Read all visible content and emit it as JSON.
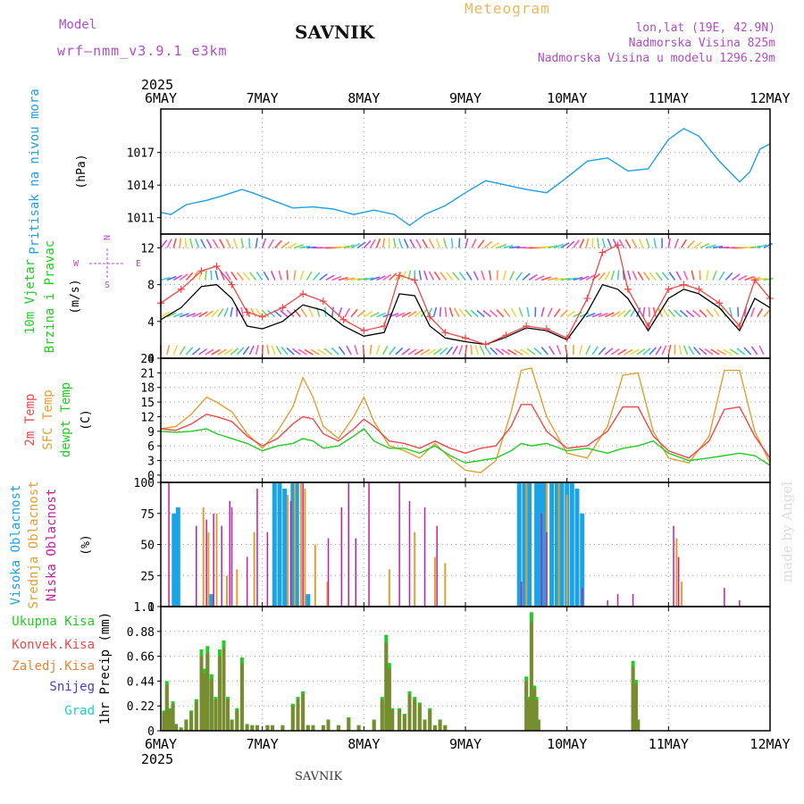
{
  "header": {
    "model_label": "Model",
    "model_name": "wrf—nmm_v3.9.1  e3km",
    "station": "SAVNIK",
    "product": "Meteogram",
    "lonlat": "lon,lat (19E, 42.9N)",
    "altitude": "Nadmorska Visina 825m",
    "model_altitude": "Nadmorska Visina u modelu 1296.29m"
  },
  "footer": {
    "station": "SAVNIK",
    "credit": "made by Angel"
  },
  "colors": {
    "pressure": "#1ea0e6",
    "wind_label": "#22cc22",
    "temp2m": "#f04848",
    "sfc": "#e0a030",
    "dewpt": "#22cc22",
    "cloud_high": "#1aa4e6",
    "cloud_mid": "#e0a030",
    "cloud_low": "#c020a0",
    "precip_total": "#22cc22",
    "precip_conv": "#f04848",
    "precip_frozen": "#f08030",
    "snow": "#4a3ad0",
    "hail": "#1ad0c8",
    "axis_purple": "#b04cc8"
  },
  "chart_data": [
    {
      "type": "line",
      "name": "pressure",
      "title": "Pritisak na nivou mora",
      "ylabel": "(hPa)",
      "ylim": [
        1009.5,
        1021
      ],
      "yticks": [
        1011,
        1014,
        1017
      ],
      "x_days": [
        0,
        0.1,
        0.25,
        0.45,
        0.6,
        0.8,
        0.9,
        1.1,
        1.3,
        1.5,
        1.7,
        1.9,
        2.1,
        2.3,
        2.45,
        2.6,
        2.8,
        3.0,
        3.2,
        3.4,
        3.6,
        3.8,
        4.0,
        4.2,
        4.4,
        4.6,
        4.8,
        5.0,
        5.15,
        5.3,
        5.5,
        5.7,
        5.8,
        5.9,
        6.0
      ],
      "values": [
        1011.5,
        1011.3,
        1012.2,
        1012.6,
        1013.0,
        1013.6,
        1013.3,
        1012.6,
        1011.9,
        1012.0,
        1011.8,
        1011.3,
        1011.7,
        1011.3,
        1010.3,
        1011.3,
        1012.1,
        1013.3,
        1014.4,
        1014.0,
        1013.6,
        1013.3,
        1014.7,
        1016.2,
        1016.5,
        1015.3,
        1015.5,
        1018.2,
        1019.2,
        1018.5,
        1016.2,
        1014.3,
        1015.2,
        1017.3,
        1017.8
      ]
    },
    {
      "type": "line",
      "name": "wind",
      "title": "10m Vjetar Brzina i Pravac",
      "ylabel": "(m/s)",
      "ylim": [
        0,
        13.5
      ],
      "yticks": [
        0,
        4,
        8,
        12
      ],
      "compass": {
        "north": "N",
        "south": "S",
        "east": "E",
        "west": "W"
      },
      "x_days": [
        0,
        0.2,
        0.4,
        0.55,
        0.7,
        0.85,
        1.0,
        1.2,
        1.4,
        1.6,
        1.8,
        2.0,
        2.2,
        2.35,
        2.5,
        2.65,
        2.8,
        3.0,
        3.2,
        3.4,
        3.6,
        3.8,
        4.0,
        4.2,
        4.35,
        4.5,
        4.6,
        4.8,
        5.0,
        5.15,
        5.3,
        5.5,
        5.7,
        5.85,
        6.0
      ],
      "series": [
        {
          "name": "Wind speed",
          "values": [
            4.2,
            5.5,
            7.8,
            8.0,
            6.5,
            3.5,
            3.2,
            4.0,
            5.8,
            5.2,
            3.5,
            2.4,
            2.8,
            7.0,
            6.8,
            3.5,
            2.2,
            1.8,
            1.5,
            2.3,
            3.3,
            3.0,
            2.0,
            5.0,
            8.0,
            7.5,
            6.5,
            3.0,
            6.5,
            7.5,
            7.0,
            5.5,
            3.0,
            6.5,
            5.5
          ]
        },
        {
          "name": "Gusts",
          "values": [
            6.0,
            7.5,
            9.5,
            10.0,
            8.0,
            5.0,
            4.5,
            5.5,
            7.0,
            6.2,
            4.2,
            3.0,
            3.5,
            9.0,
            8.5,
            4.5,
            2.8,
            2.2,
            1.5,
            2.5,
            3.5,
            3.2,
            2.2,
            6.5,
            11.5,
            12.3,
            7.5,
            3.5,
            7.5,
            8.0,
            7.5,
            6.0,
            3.5,
            8.5,
            6.5
          ]
        }
      ]
    },
    {
      "type": "line",
      "name": "temperature",
      "title": "2m Temp / SFC Temp / dewpt Temp",
      "ylabel": "(C)",
      "ylim": [
        -1.5,
        24
      ],
      "yticks": [
        0,
        3,
        6,
        9,
        12,
        15,
        18,
        21,
        24
      ],
      "x_days": [
        0,
        0.15,
        0.3,
        0.45,
        0.55,
        0.7,
        0.85,
        1.0,
        1.15,
        1.3,
        1.4,
        1.5,
        1.6,
        1.75,
        1.9,
        2.0,
        2.1,
        2.25,
        2.4,
        2.55,
        2.7,
        2.85,
        3.0,
        3.15,
        3.3,
        3.45,
        3.55,
        3.65,
        3.8,
        4.0,
        4.2,
        4.4,
        4.55,
        4.7,
        4.85,
        5.0,
        5.2,
        5.4,
        5.55,
        5.7,
        5.85,
        6.0
      ],
      "series": [
        {
          "name": "2m Temp",
          "values": [
            9.5,
            9.2,
            10.5,
            12.5,
            12.0,
            11.0,
            8.0,
            6.0,
            7.5,
            10.5,
            12.0,
            11.5,
            8.5,
            7.0,
            9.5,
            11.5,
            10.0,
            7.0,
            6.5,
            5.5,
            7.0,
            5.5,
            4.5,
            5.5,
            6.0,
            10.0,
            14.5,
            14.5,
            9.0,
            5.5,
            6.0,
            9.0,
            14.0,
            14.0,
            8.0,
            5.0,
            3.5,
            7.0,
            13.5,
            14.0,
            8.0,
            3.5
          ]
        },
        {
          "name": "SFC Temp",
          "values": [
            9.5,
            10.0,
            12.5,
            16.0,
            15.0,
            13.0,
            8.5,
            5.5,
            9.0,
            14.0,
            20.0,
            16.0,
            10.0,
            7.5,
            12.0,
            16.0,
            11.0,
            6.0,
            5.0,
            3.5,
            6.5,
            3.5,
            1.0,
            0.5,
            3.0,
            13.0,
            21.5,
            22.0,
            12.0,
            4.5,
            3.5,
            10.0,
            20.5,
            21.0,
            9.0,
            3.5,
            2.5,
            8.0,
            21.5,
            21.5,
            9.0,
            2.5
          ]
        },
        {
          "name": "dewpt Temp",
          "values": [
            9.0,
            8.8,
            9.0,
            9.5,
            8.5,
            7.5,
            6.5,
            5.0,
            6.0,
            6.5,
            7.5,
            7.0,
            5.5,
            6.0,
            8.0,
            9.5,
            7.0,
            5.5,
            5.5,
            4.5,
            6.0,
            4.0,
            2.5,
            3.0,
            3.5,
            5.0,
            6.5,
            6.0,
            6.5,
            5.0,
            5.5,
            4.5,
            5.5,
            6.0,
            7.0,
            4.5,
            3.0,
            3.5,
            4.0,
            4.5,
            4.0,
            2.0
          ]
        }
      ]
    },
    {
      "type": "bar",
      "name": "clouds",
      "title": "Visoka / Srednja / Niska Oblacnost",
      "ylabel": "(%)",
      "ylim": [
        0,
        100
      ],
      "yticks": [
        0,
        25,
        50,
        75,
        100
      ],
      "series": [
        {
          "name": "Visoka Oblacnost",
          "x_days": [
            0.13,
            0.17,
            0.5,
            1.12,
            1.17,
            1.22,
            1.3,
            1.34,
            1.45,
            3.53,
            3.58,
            3.63,
            3.7,
            3.74,
            3.78,
            3.85,
            3.9,
            3.95,
            4.0,
            4.05,
            4.1,
            4.15
          ],
          "values": [
            75,
            80,
            10,
            100,
            100,
            95,
            100,
            100,
            10,
            100,
            100,
            100,
            100,
            100,
            100,
            100,
            100,
            100,
            100,
            100,
            95,
            75
          ]
        },
        {
          "name": "Srednja Oblacnost",
          "x_days": [
            0.42,
            0.47,
            0.55,
            0.65,
            0.75,
            0.92,
            1.25,
            1.32,
            1.38,
            1.42,
            1.52,
            1.64,
            2.25,
            2.5,
            2.7,
            2.8,
            3.6,
            3.8,
            3.92,
            4.0,
            5.08,
            5.13
          ],
          "values": [
            80,
            60,
            75,
            25,
            30,
            60,
            90,
            100,
            100,
            95,
            50,
            20,
            30,
            60,
            40,
            35,
            100,
            100,
            100,
            90,
            55,
            20
          ]
        },
        {
          "name": "Niska Oblacnost",
          "x_days": [
            0.08,
            0.35,
            0.45,
            0.52,
            0.6,
            0.68,
            0.7,
            0.85,
            0.95,
            1.05,
            1.28,
            1.4,
            1.65,
            1.78,
            1.85,
            1.92,
            2.05,
            2.35,
            2.45,
            2.6,
            2.72,
            3.55,
            3.75,
            3.8,
            4.15,
            4.4,
            4.5,
            4.65,
            5.05,
            5.1,
            5.55,
            5.7
          ],
          "values": [
            100,
            65,
            70,
            75,
            65,
            85,
            80,
            40,
            95,
            60,
            85,
            100,
            55,
            80,
            100,
            55,
            100,
            100,
            85,
            80,
            65,
            20,
            75,
            60,
            15,
            5,
            10,
            10,
            65,
            40,
            15,
            5
          ]
        }
      ]
    },
    {
      "type": "bar",
      "name": "precipitation",
      "title": "1hr Precip",
      "ylabel": "1hr Precip (mm)",
      "ylim": [
        0,
        1.1
      ],
      "yticks": [
        0,
        0.22,
        0.44,
        0.66,
        0.88,
        1.1
      ],
      "x_days": [
        0.03,
        0.06,
        0.09,
        0.12,
        0.15,
        0.2,
        0.25,
        0.3,
        0.35,
        0.4,
        0.43,
        0.46,
        0.5,
        0.54,
        0.58,
        0.62,
        0.66,
        0.7,
        0.75,
        0.8,
        0.85,
        0.9,
        0.95,
        1.05,
        1.1,
        1.2,
        1.3,
        1.35,
        1.4,
        1.45,
        1.5,
        1.6,
        1.65,
        1.75,
        1.85,
        1.95,
        2.1,
        2.18,
        2.22,
        2.25,
        2.28,
        2.35,
        2.4,
        2.45,
        2.5,
        2.55,
        2.6,
        2.65,
        2.7,
        2.75,
        2.8,
        3.6,
        3.62,
        3.65,
        3.68,
        3.7,
        3.72,
        4.65,
        4.68,
        4.7
      ],
      "values": [
        0.18,
        0.44,
        0.2,
        0.26,
        0.06,
        0.03,
        0.1,
        0.18,
        0.28,
        0.72,
        0.55,
        0.75,
        0.5,
        0.3,
        0.72,
        0.8,
        0.3,
        0.1,
        0.2,
        0.65,
        0.06,
        0.05,
        0.05,
        0.05,
        0.05,
        0.05,
        0.24,
        0.3,
        0.35,
        0.05,
        0.05,
        0.05,
        0.1,
        0.05,
        0.12,
        0.05,
        0.1,
        0.3,
        0.85,
        0.6,
        0.2,
        0.2,
        0.15,
        0.35,
        0.3,
        0.25,
        0.1,
        0.2,
        0.05,
        0.1,
        0.05,
        0.48,
        0.3,
        1.05,
        0.4,
        0.3,
        0.1,
        0.62,
        0.45,
        0.1
      ],
      "legend": [
        "Ukupna Kisa",
        "Konvek.Kisa",
        "Zaledj.Kisa",
        "Snijeg",
        "Grad"
      ]
    }
  ],
  "axis": {
    "year": "2025",
    "day_labels": [
      "6MAY",
      "7MAY",
      "8MAY",
      "9MAY",
      "10MAY",
      "11MAY",
      "12MAY"
    ]
  },
  "panel_labels": {
    "pressure": [
      "Pritisak na nivou mora",
      "(hPa)"
    ],
    "wind": [
      "10m Vjetar",
      "Brzina i Pravac",
      "(m/s)"
    ],
    "temp": [
      "2m Temp",
      "SFC Temp",
      "dewpt Temp",
      "(C)"
    ],
    "clouds": [
      "Visoka Oblacnost",
      "Srednja Oblacnost",
      "Niska Oblacnost",
      "(%)"
    ],
    "precip": [
      "1hr Precip (mm)"
    ]
  }
}
